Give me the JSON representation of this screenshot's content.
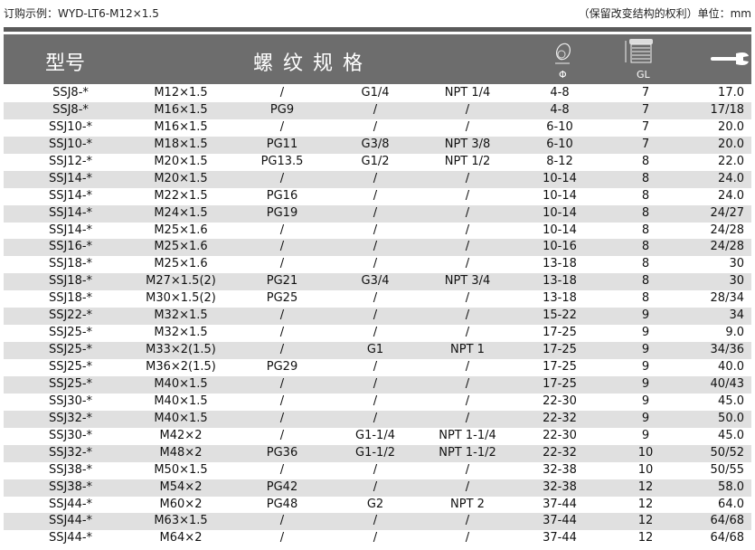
{
  "top": {
    "order_example": "订购示例：WYD-LT6-M12×1.5",
    "note": "（保留改变结构的权利）单位：mm"
  },
  "header": {
    "model": "型号",
    "thread": "螺 纹 规 格",
    "diameter_label": "Φ",
    "gl_label": "GL",
    "icons": [
      "cable-diameter-icon",
      "gland-length-icon",
      "wrench-icon"
    ]
  },
  "colors": {
    "header_bg": "#6d6d6d",
    "alt_row": "#e0e0e0"
  },
  "rows": [
    [
      "SSJ8-*",
      "M12×1.5",
      "/",
      "G1/4",
      "NPT 1/4",
      "4-8",
      "7",
      "17.0"
    ],
    [
      "SSJ8-*",
      "M16×1.5",
      "PG9",
      "/",
      "/",
      "4-8",
      "7",
      "17/18"
    ],
    [
      "SSJ10-*",
      "M16×1.5",
      "/",
      "/",
      "/",
      "6-10",
      "7",
      "20.0"
    ],
    [
      "SSJ10-*",
      "M18×1.5",
      "PG11",
      "G3/8",
      "NPT 3/8",
      "6-10",
      "7",
      "20.0"
    ],
    [
      "SSJ12-*",
      "M20×1.5",
      "PG13.5",
      "G1/2",
      "NPT 1/2",
      "8-12",
      "8",
      "22.0"
    ],
    [
      "SSJ14-*",
      "M20×1.5",
      "/",
      "/",
      "/",
      "10-14",
      "8",
      "24.0"
    ],
    [
      "SSJ14-*",
      "M22×1.5",
      "PG16",
      "/",
      "/",
      "10-14",
      "8",
      "24.0"
    ],
    [
      "SSJ14-*",
      "M24×1.5",
      "PG19",
      "/",
      "/",
      "10-14",
      "8",
      "24/27"
    ],
    [
      "SSJ14-*",
      "M25×1.6",
      "/",
      "/",
      "/",
      "10-14",
      "8",
      "24/28"
    ],
    [
      "SSJ16-*",
      "M25×1.6",
      "/",
      "/",
      "/",
      "10-16",
      "8",
      "24/28"
    ],
    [
      "SSJ18-*",
      "M25×1.6",
      "/",
      "/",
      "/",
      "13-18",
      "8",
      "30"
    ],
    [
      "SSJ18-*",
      "M27×1.5(2)",
      "PG21",
      "G3/4",
      "NPT 3/4",
      "13-18",
      "8",
      "30"
    ],
    [
      "SSJ18-*",
      "M30×1.5(2)",
      "PG25",
      "/",
      "/",
      "13-18",
      "8",
      "28/34"
    ],
    [
      "SSJ22-*",
      "M32×1.5",
      "/",
      "/",
      "/",
      "15-22",
      "9",
      "34"
    ],
    [
      "SSJ25-*",
      "M32×1.5",
      "/",
      "/",
      "/",
      "17-25",
      "9",
      "9.0"
    ],
    [
      "SSJ25-*",
      "M33×2(1.5)",
      "/",
      "G1",
      "NPT 1",
      "17-25",
      "9",
      "34/36"
    ],
    [
      "SSJ25-*",
      "M36×2(1.5)",
      "PG29",
      "/",
      "/",
      "17-25",
      "9",
      "40.0"
    ],
    [
      "SSJ25-*",
      "M40×1.5",
      "/",
      "/",
      "/",
      "17-25",
      "9",
      "40/43"
    ],
    [
      "SSJ30-*",
      "M40×1.5",
      "/",
      "/",
      "/",
      "22-30",
      "9",
      "45.0"
    ],
    [
      "SSJ32-*",
      "M40×1.5",
      "/",
      "/",
      "/",
      "22-32",
      "9",
      "50.0"
    ],
    [
      "SSJ30-*",
      "M42×2",
      "/",
      "G1-1/4",
      "NPT 1-1/4",
      "22-30",
      "9",
      "45.0"
    ],
    [
      "SSJ32-*",
      "M48×2",
      "PG36",
      "G1-1/2",
      "NPT 1-1/2",
      "22-32",
      "10",
      "50/52"
    ],
    [
      "SSJ38-*",
      "M50×1.5",
      "/",
      "/",
      "/",
      "32-38",
      "10",
      "50/55"
    ],
    [
      "SSJ38-*",
      "M54×2",
      "PG42",
      "/",
      "/",
      "32-38",
      "12",
      "58.0"
    ],
    [
      "SSJ44-*",
      "M60×2",
      "PG48",
      "G2",
      "NPT 2",
      "37-44",
      "12",
      "64.0"
    ],
    [
      "SSJ44-*",
      "M63×1.5",
      "/",
      "/",
      "/",
      "37-44",
      "12",
      "64/68"
    ],
    [
      "SSJ44-*",
      "M64×2",
      "/",
      "/",
      "/",
      "37-44",
      "12",
      "64/68"
    ]
  ]
}
